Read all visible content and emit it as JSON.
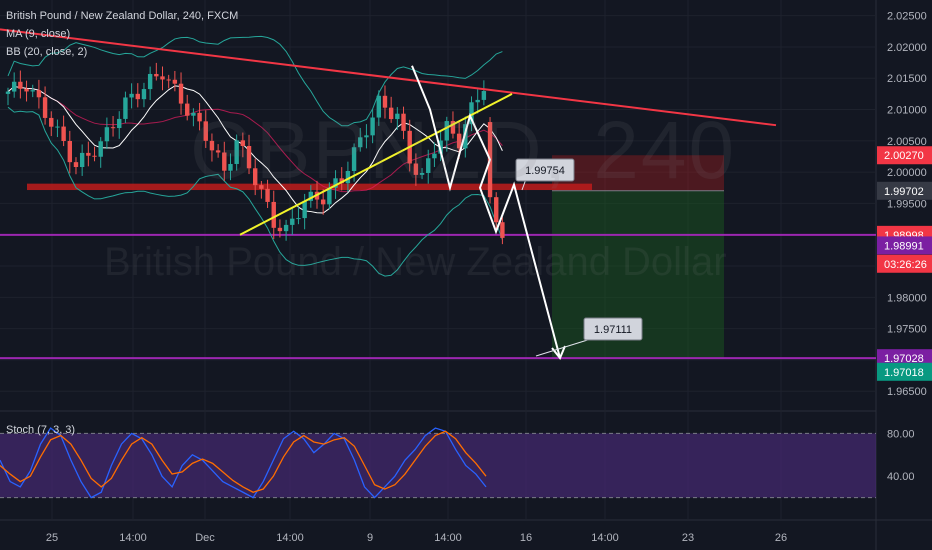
{
  "header": {
    "title": "British Pound / New Zealand Dollar, 240, FXCM",
    "ma_label": "MA (9, close)",
    "bb_label": "BB (20, close, 2)",
    "stoch_label": "Stoch (7, 3, 3)"
  },
  "watermark": {
    "symbol": "GBPNZD, 240",
    "description": "British Pound / New Zealand Dollar"
  },
  "colors": {
    "background": "#131722",
    "grid": "#1e222d",
    "bull": "#26a69a",
    "bear": "#ef5350",
    "ma": "#ffffff",
    "bb_band": "#26a69a",
    "bb_basis": "#e91e63",
    "trendline_top": "#f23645",
    "trendline_rising": "#f2f32a",
    "support_zone": "#b71c1c",
    "horizontal_level": "#9c27b0",
    "stoch_k": "#2962ff",
    "stoch_d": "#ff6d00",
    "stoch_band": "#4a2a79"
  },
  "chart_data": [
    {
      "type": "candlestick",
      "title": "British Pound / New Zealand Dollar, 240, FXCM",
      "y_ticks": [
        "2.02500",
        "2.02000",
        "2.01500",
        "2.01000",
        "2.00500",
        "2.00000",
        "1.99500",
        "1.99000",
        "1.98500",
        "1.98000",
        "1.97500",
        "1.97000",
        "1.96500"
      ],
      "x_ticks": [
        "25",
        "14:00",
        "Dec",
        "14:00",
        "9",
        "14:00",
        "16",
        "14:00",
        "23",
        "26"
      ],
      "ylim": [
        1.962,
        2.0275
      ],
      "price_badges": [
        {
          "label": "2.00270",
          "value": 2.0027,
          "color": "#f23645"
        },
        {
          "label": "1.99702",
          "value": 1.99702,
          "color": "#363a45"
        },
        {
          "label": "1.98998",
          "value": 1.98998,
          "color": "#f23645"
        },
        {
          "label": "03:26:26",
          "value": 1.9868,
          "color": "#f23645"
        },
        {
          "label": "1.98991",
          "value": 1.98925,
          "color": "#7b1fa2"
        },
        {
          "label": "1.97028",
          "value": 1.97028,
          "color": "#7b1fa2"
        },
        {
          "label": "1.97018",
          "value": 1.97018,
          "color": "#089981"
        }
      ],
      "callouts": [
        {
          "label": "1.99754",
          "value": 1.99754
        },
        {
          "label": "1.97111",
          "value": 1.97111
        }
      ],
      "drawings": {
        "horizontal_levels": [
          1.98998,
          1.97028
        ],
        "support_zone": [
          1.9973,
          1.998
        ],
        "short_position": {
          "entry": 1.99702,
          "stop": 2.0027,
          "target": 1.97028
        }
      }
    },
    {
      "type": "line",
      "title": "Stoch (7, 3, 3)",
      "y_ticks": [
        "80.00",
        "40.00"
      ],
      "band": [
        20,
        80
      ],
      "series": [
        {
          "name": "%K",
          "values": [
            55,
            35,
            30,
            45,
            70,
            85,
            78,
            55,
            35,
            20,
            25,
            50,
            70,
            80,
            75,
            60,
            40,
            30,
            50,
            60,
            55,
            45,
            35,
            30,
            25,
            20,
            35,
            55,
            75,
            82,
            75,
            62,
            70,
            80,
            75,
            55,
            30,
            20,
            30,
            40,
            55,
            65,
            78,
            85,
            82,
            65,
            50,
            42,
            30
          ]
        },
        {
          "name": "%D",
          "values": [
            50,
            42,
            35,
            40,
            58,
            74,
            78,
            70,
            55,
            38,
            30,
            38,
            55,
            70,
            76,
            70,
            55,
            42,
            44,
            52,
            56,
            52,
            44,
            36,
            30,
            25,
            28,
            40,
            58,
            72,
            78,
            72,
            70,
            74,
            76,
            68,
            50,
            32,
            28,
            32,
            42,
            55,
            68,
            78,
            82,
            75,
            62,
            52,
            40
          ]
        }
      ]
    }
  ]
}
